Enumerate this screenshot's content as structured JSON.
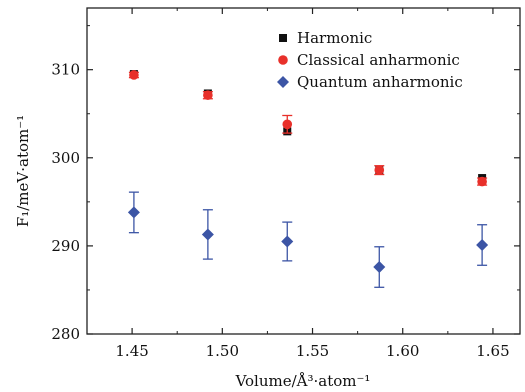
{
  "chart_data": {
    "type": "scatter",
    "title": "",
    "xlabel": "Volume/Å³·atom⁻¹",
    "ylabel": "F₁/meV·atom⁻¹",
    "xlim": [
      1.425,
      1.665
    ],
    "ylim": [
      280,
      317
    ],
    "x_ticks": [
      1.45,
      1.5,
      1.55,
      1.6,
      1.65
    ],
    "x_tick_labels": [
      "1.45",
      "1.50",
      "1.55",
      "1.60",
      "1.65"
    ],
    "y_ticks": [
      280,
      290,
      300,
      310
    ],
    "y_tick_labels": [
      "280",
      "290",
      "300",
      "310"
    ],
    "grid": false,
    "legend_position": "top-right",
    "series": [
      {
        "name": "Harmonic",
        "marker": "square",
        "color": "#111111",
        "points": [
          {
            "x": 1.451,
            "y": 309.5,
            "err": 0
          },
          {
            "x": 1.492,
            "y": 307.3,
            "err": 0
          },
          {
            "x": 1.536,
            "y": 303.0,
            "err": 0
          },
          {
            "x": 1.587,
            "y": 298.6,
            "err": 0
          },
          {
            "x": 1.644,
            "y": 297.7,
            "err": 0
          }
        ]
      },
      {
        "name": "Classical anharmonic",
        "marker": "circle",
        "color": "#e8302a",
        "points": [
          {
            "x": 1.451,
            "y": 309.4,
            "err": 0.3
          },
          {
            "x": 1.492,
            "y": 307.1,
            "err": 0.4
          },
          {
            "x": 1.536,
            "y": 303.8,
            "err": 1.0
          },
          {
            "x": 1.587,
            "y": 298.6,
            "err": 0.5
          },
          {
            "x": 1.644,
            "y": 297.3,
            "err": 0.4
          }
        ]
      },
      {
        "name": "Quantum anharmonic",
        "marker": "diamond",
        "color": "#3c55a5",
        "points": [
          {
            "x": 1.451,
            "y": 293.8,
            "err": 2.3
          },
          {
            "x": 1.492,
            "y": 291.3,
            "err": 2.8
          },
          {
            "x": 1.536,
            "y": 290.5,
            "err": 2.2
          },
          {
            "x": 1.587,
            "y": 287.6,
            "err": 2.3
          },
          {
            "x": 1.644,
            "y": 290.1,
            "err": 2.3
          }
        ]
      }
    ]
  }
}
